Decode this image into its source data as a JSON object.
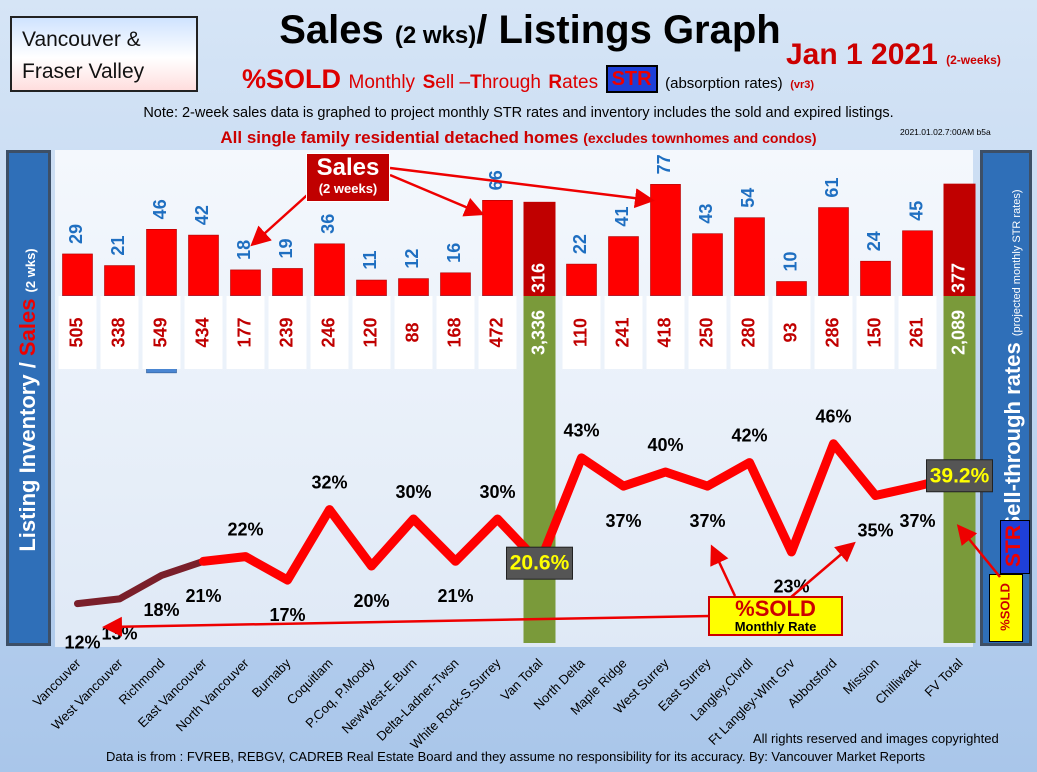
{
  "header": {
    "region_line1": "Vancouver &",
    "region_line2": "Fraser Valley",
    "title_main": "Sales",
    "title_paren": "(2 wks)",
    "title_rest": "/ Listings Graph",
    "date": "Jan  1  2021",
    "date_note": "(2-weeks)",
    "sold_pct": "%SOLD",
    "subtitle_rest_1": "Monthly",
    "subtitle_S": "S",
    "subtitle_ell": "ell –",
    "subtitle_T": "T",
    "subtitle_hrough": "hrough",
    "subtitle_R": "R",
    "subtitle_ates": "ates",
    "str_badge": "STR",
    "absorption": "(absorption rates)",
    "version": "(vr3)",
    "note": "Note: 2-week sales data is graphed to project monthly STR rates and inventory includes the sold and expired listings.",
    "sfr_main": "All single family residential detached homes",
    "sfr_paren": "(excludes townhomes and condos)",
    "timestamp": "2021.01.02.7:00AM b5a"
  },
  "side_labels": {
    "left_a": "Listing Inventory / ",
    "left_b": "Sales",
    "left_c": "(2  wks)",
    "right_a": "Sell-through rates",
    "right_b": "(projected monthly STR rates)",
    "str": "STR",
    "sold": "%SOLD"
  },
  "callouts": {
    "sales_big": "Sales",
    "sales_small": "(2 weeks)",
    "sold_big": "%SOLD",
    "sold_small": "Monthly Rate"
  },
  "footer": {
    "rights": "All rights reserved and  images copyrighted",
    "source": "Data is from : FVREB, REBGV, CADREB Real Estate Board and they assume no responsibility for its accuracy. By: Vancouver Market Reports"
  },
  "colors": {
    "sales_bar": "#ff0000",
    "inventory_bar": "#4a86d2",
    "total_bar": "#7a9a3a",
    "total_sales_bar": "#c00000",
    "sales_label": "#1f6fc1",
    "inventory_label": "#c00000",
    "str_line": "#ff0000"
  },
  "chart_data": {
    "type": "bar",
    "categories": [
      "Vancouver",
      "West Vancouver",
      "Richmond",
      "East Vancouver",
      "North Vancouver",
      "Burnaby",
      "Coquitlam",
      "P.Coq, P.Moody",
      "NewWest-E.Burn",
      "Delta-Ladner-Twsn",
      "White Rock-S.Surrey",
      "Van Total",
      "North Delta",
      "Maple Ridge",
      "West Surrey",
      "East Surrey",
      "Langley,Clvrdl",
      "Ft Langley-Wlnt Grv",
      "Abbotsford",
      "Mission",
      "Chilliwack",
      "FV Total"
    ],
    "sales_labels": [
      "29",
      "21",
      "46",
      "42",
      "18",
      "19",
      "36",
      "11",
      "12",
      "16",
      "66",
      "316",
      "22",
      "41",
      "77",
      "43",
      "54",
      "10",
      "61",
      "24",
      "45",
      "377"
    ],
    "inventory_labels": [
      "505",
      "338",
      "549",
      "434",
      "177",
      "239",
      "246",
      "120",
      "88",
      "168",
      "472",
      "3,336",
      "110",
      "241",
      "418",
      "250",
      "280",
      "93",
      "286",
      "150",
      "261",
      "2,089"
    ],
    "sales": [
      29,
      21,
      46,
      42,
      18,
      19,
      36,
      11,
      12,
      16,
      66,
      316,
      22,
      41,
      77,
      43,
      54,
      10,
      61,
      24,
      45,
      377
    ],
    "inventory": [
      505,
      338,
      549,
      434,
      177,
      239,
      246,
      120,
      88,
      168,
      472,
      3336,
      110,
      241,
      418,
      250,
      280,
      93,
      286,
      150,
      261,
      2089
    ],
    "str_labels": [
      "12%",
      "13%",
      "18%",
      "21%",
      "22%",
      "17%",
      "32%",
      "20%",
      "30%",
      "21%",
      "30%",
      "20.6%",
      "43%",
      "37%",
      "40%",
      "37%",
      "42%",
      "23%",
      "46%",
      "35%",
      "37%",
      "39.2%"
    ],
    "str_percent": [
      12,
      13,
      18,
      21,
      22,
      17,
      32,
      20,
      30,
      21,
      30,
      20.6,
      43,
      37,
      40,
      37,
      42,
      23,
      46,
      35,
      37,
      39.2
    ],
    "totals": [
      "Van Total",
      "FV Total"
    ]
  }
}
